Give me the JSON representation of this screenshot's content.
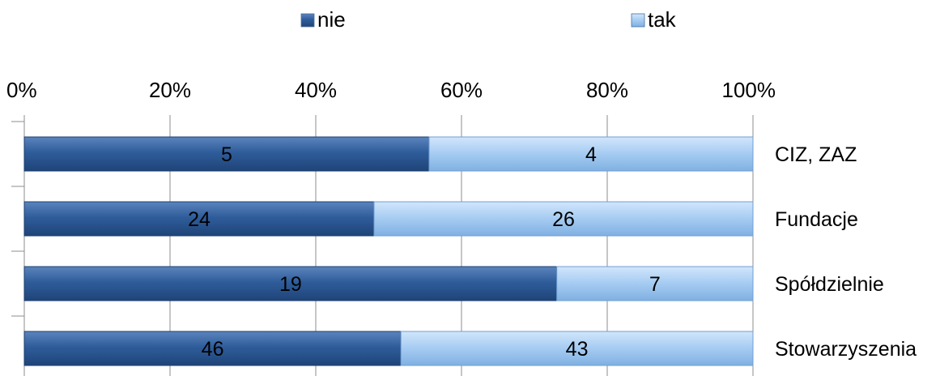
{
  "chart_data": {
    "type": "bar",
    "orientation": "horizontal",
    "stacked": "percent",
    "categories": [
      "CIZ, ZAZ",
      "Fundacje",
      "Spółdzielnie",
      "Stowarzyszenia"
    ],
    "series": [
      {
        "name": "nie",
        "color": "#2e5c9a",
        "values": [
          5,
          24,
          19,
          46
        ]
      },
      {
        "name": "tak",
        "color": "#a8cdf2",
        "values": [
          4,
          26,
          7,
          43
        ]
      }
    ],
    "x_ticks": [
      "0%",
      "20%",
      "40%",
      "60%",
      "80%",
      "100%"
    ],
    "xlim": [
      0,
      100
    ],
    "x_axis_position": "top",
    "category_axis_position": "right",
    "legend_position": "top",
    "grid": true
  }
}
